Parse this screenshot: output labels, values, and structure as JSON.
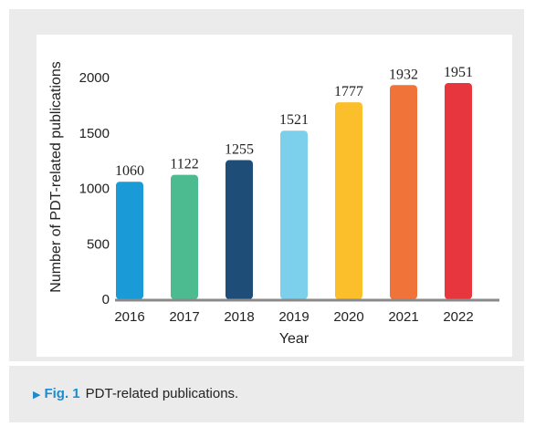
{
  "caption": {
    "marker": "▶",
    "label": "Fig. 1",
    "text": "PDT-related publications."
  },
  "chart_data": {
    "type": "bar",
    "categories": [
      "2016",
      "2017",
      "2018",
      "2019",
      "2020",
      "2021",
      "2022"
    ],
    "values": [
      1060,
      1122,
      1255,
      1521,
      1777,
      1932,
      1951
    ],
    "colors": [
      "#1a9ad6",
      "#4cbb8f",
      "#1e4d78",
      "#7dd0ec",
      "#fbbf2c",
      "#f0743a",
      "#e8363f"
    ],
    "xlabel": "Year",
    "ylabel": "Number of PDT-related publications",
    "yticks": [
      0,
      500,
      1000,
      1500,
      2000
    ],
    "ylim": [
      0,
      2000
    ],
    "grid": false,
    "data_labels": true
  }
}
